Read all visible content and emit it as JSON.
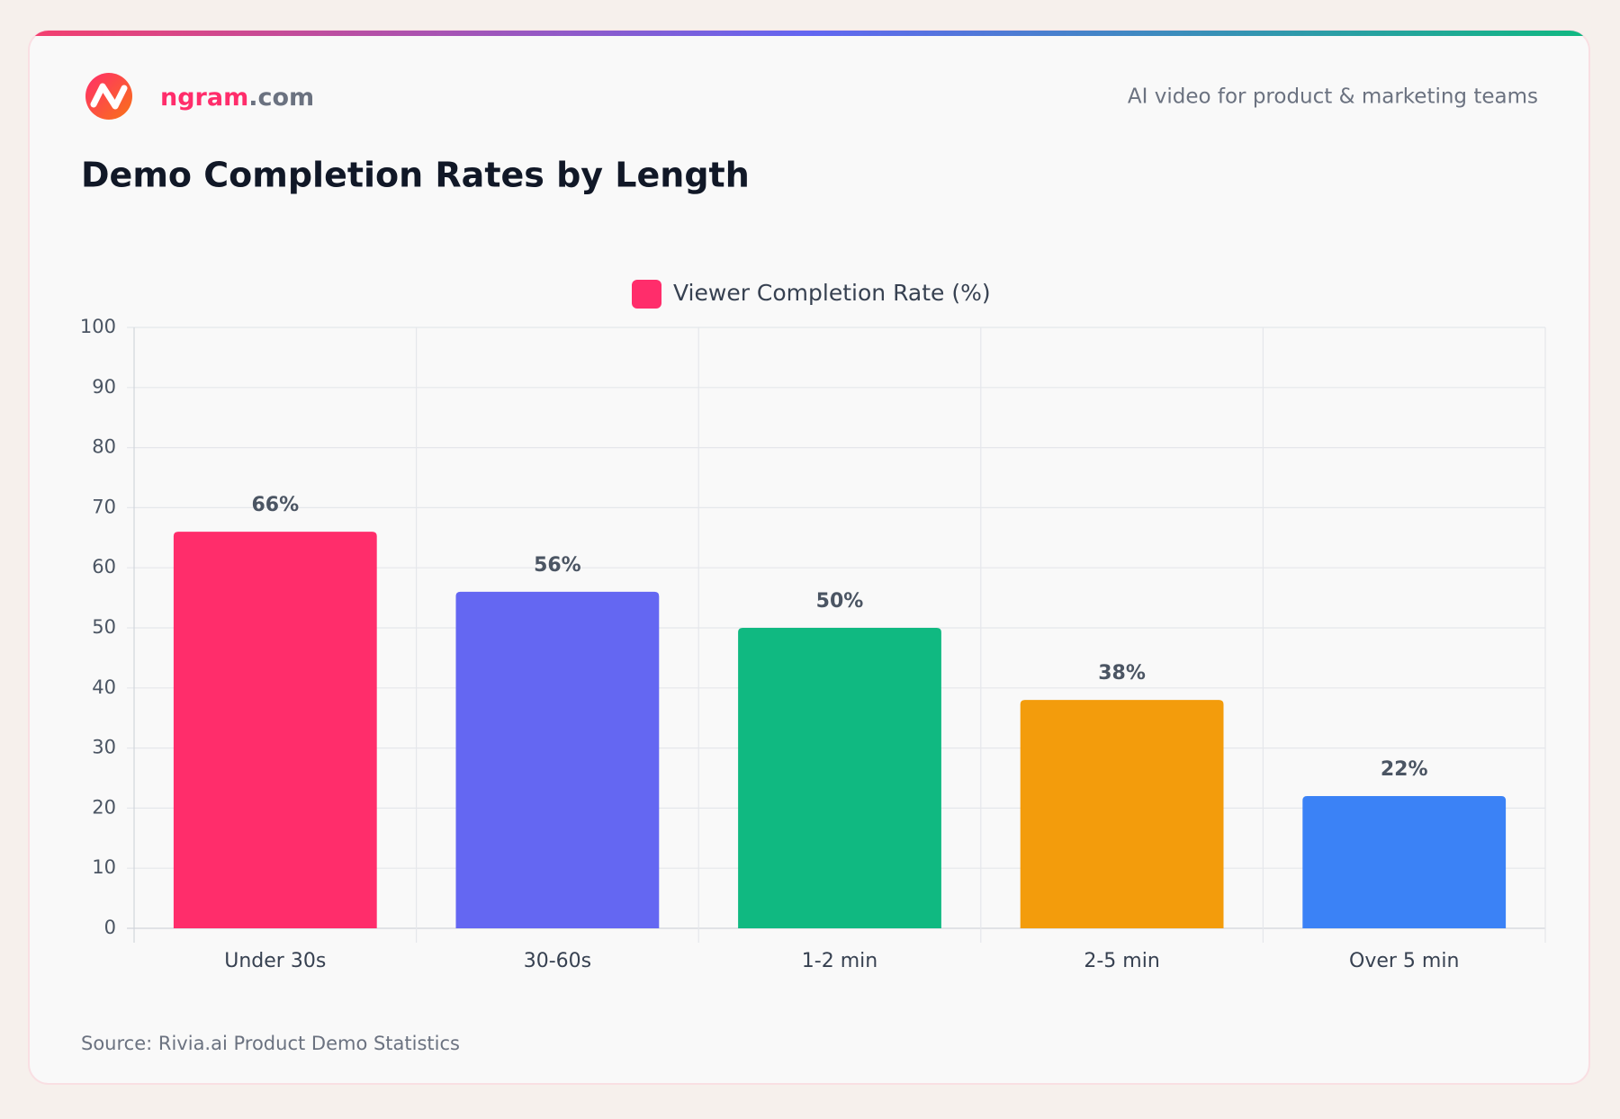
{
  "header": {
    "brand_name": "ngram",
    "brand_domain": ".com",
    "tagline": "AI video for product & marketing teams"
  },
  "chart_data": {
    "type": "bar",
    "title": "Demo Completion Rates by Length",
    "categories": [
      "Under 30s",
      "30-60s",
      "1-2 min",
      "2-5 min",
      "Over 5 min"
    ],
    "series": [
      {
        "name": "Viewer Completion Rate (%)",
        "color": "#ff2d6b",
        "colors": [
          "#ff2d6b",
          "#6467f2",
          "#10b981",
          "#f39c0c",
          "#3b82f6"
        ],
        "values": [
          66,
          56,
          50,
          38,
          22
        ],
        "value_labels": [
          "66%",
          "56%",
          "50%",
          "38%",
          "22%"
        ]
      }
    ],
    "ylim": [
      0,
      100
    ],
    "yticks": [
      0,
      10,
      20,
      30,
      40,
      50,
      60,
      70,
      80,
      90,
      100
    ],
    "grid": true,
    "legend": "top",
    "source": "Source: Rivia.ai Product Demo Statistics"
  }
}
